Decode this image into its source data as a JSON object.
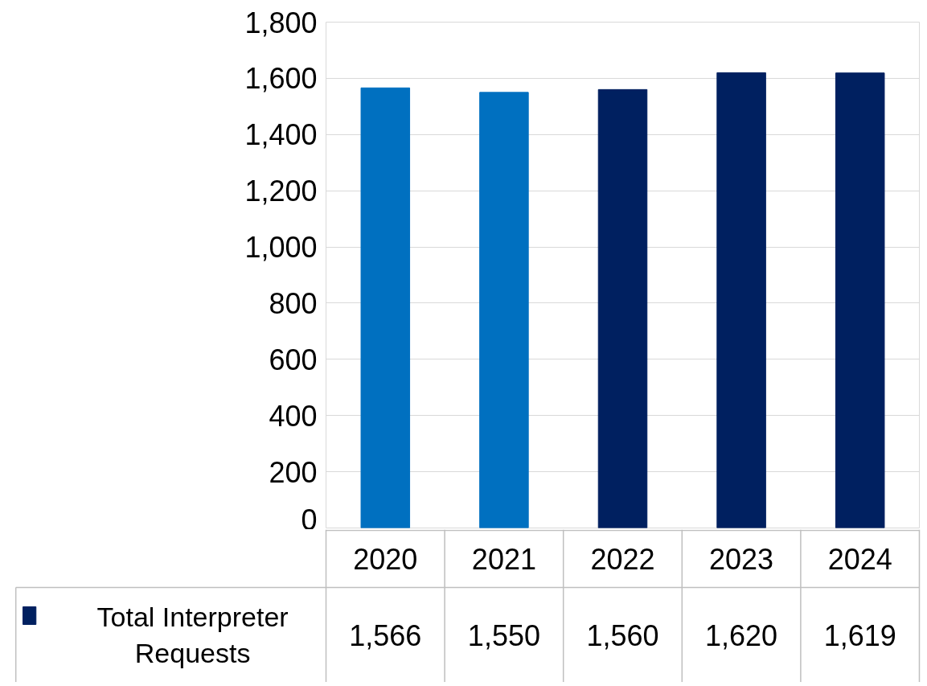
{
  "chart_data": {
    "type": "bar",
    "categories": [
      "2020",
      "2021",
      "2022",
      "2023",
      "2024"
    ],
    "series": [
      {
        "name": "Total Interpreter Requests",
        "color": "#002060",
        "colors": [
          "#0070c0",
          "#0070c0",
          "#002060",
          "#002060",
          "#002060"
        ],
        "values": [
          1566,
          1550,
          1560,
          1620,
          1619
        ],
        "value_labels": [
          "1,566",
          "1,550",
          "1,560",
          "1,620",
          "1,619"
        ]
      }
    ],
    "ylim": [
      0,
      1800
    ],
    "yticks": [
      0,
      200,
      400,
      600,
      800,
      {
        "value": 1000,
        "label": "1,000"
      },
      {
        "value": 1200,
        "label": "1,200"
      },
      {
        "value": 1400,
        "label": "1,400"
      },
      {
        "value": 1600,
        "label": "1,600"
      },
      {
        "value": 1800,
        "label": "1,800"
      }
    ],
    "grid": "y",
    "legend": "bottom left"
  }
}
